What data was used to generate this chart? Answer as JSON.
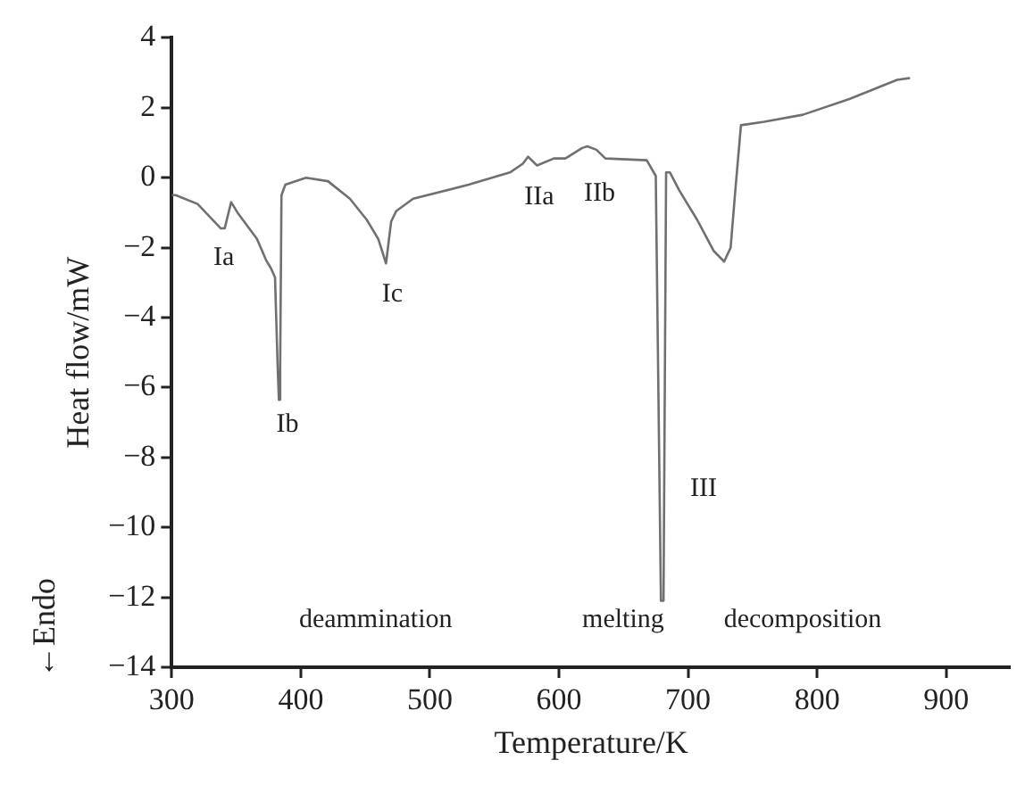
{
  "chart_data": {
    "type": "line",
    "xlabel": "Temperature/K",
    "ylabel": "Heat flow/mW",
    "xlim": [
      300,
      950
    ],
    "xticks": [
      300,
      400,
      500,
      600,
      700,
      800,
      900
    ],
    "ylim": [
      -14,
      4
    ],
    "yticks": [
      4,
      2,
      0,
      -2,
      -4,
      -6,
      -8,
      -10,
      -12,
      -14
    ],
    "grid": false,
    "legend": false,
    "marker": "none",
    "line_style": "solid",
    "series": [
      {
        "color": "#707070",
        "x": [
          300,
          303,
          320,
          338,
          341,
          346,
          351,
          366,
          373,
          377,
          380,
          382,
          383,
          384,
          385,
          388,
          404,
          421,
          438,
          451,
          460,
          466,
          470,
          474,
          487,
          530,
          562,
          572,
          576,
          583,
          596,
          605,
          618,
          622,
          629,
          636,
          668,
          675,
          679,
          681,
          683,
          686,
          693,
          707,
          720,
          728,
          733,
          737,
          741,
          759,
          789,
          825,
          862,
          872
        ],
        "values": [
          -0.5,
          -0.5,
          -0.75,
          -1.45,
          -1.45,
          -0.7,
          -1.0,
          -1.75,
          -2.35,
          -2.6,
          -2.85,
          -5.35,
          -6.35,
          -5.35,
          -0.5,
          -0.2,
          0.0,
          -0.1,
          -0.6,
          -1.2,
          -1.75,
          -2.45,
          -1.25,
          -0.95,
          -0.6,
          -0.2,
          0.15,
          0.4,
          0.6,
          0.35,
          0.55,
          0.55,
          0.85,
          0.9,
          0.8,
          0.55,
          0.5,
          0.05,
          -12.1,
          -12.1,
          0.15,
          0.15,
          -0.35,
          -1.2,
          -2.1,
          -2.4,
          -2.0,
          -0.2,
          1.5,
          1.6,
          1.8,
          2.25,
          2.8,
          2.85
        ]
      }
    ],
    "annotations": [
      "Ia",
      "Ib",
      "Ic",
      "IIa",
      "IIb",
      "III",
      "deammination",
      "melting",
      "decomposition",
      "←Endo"
    ]
  }
}
